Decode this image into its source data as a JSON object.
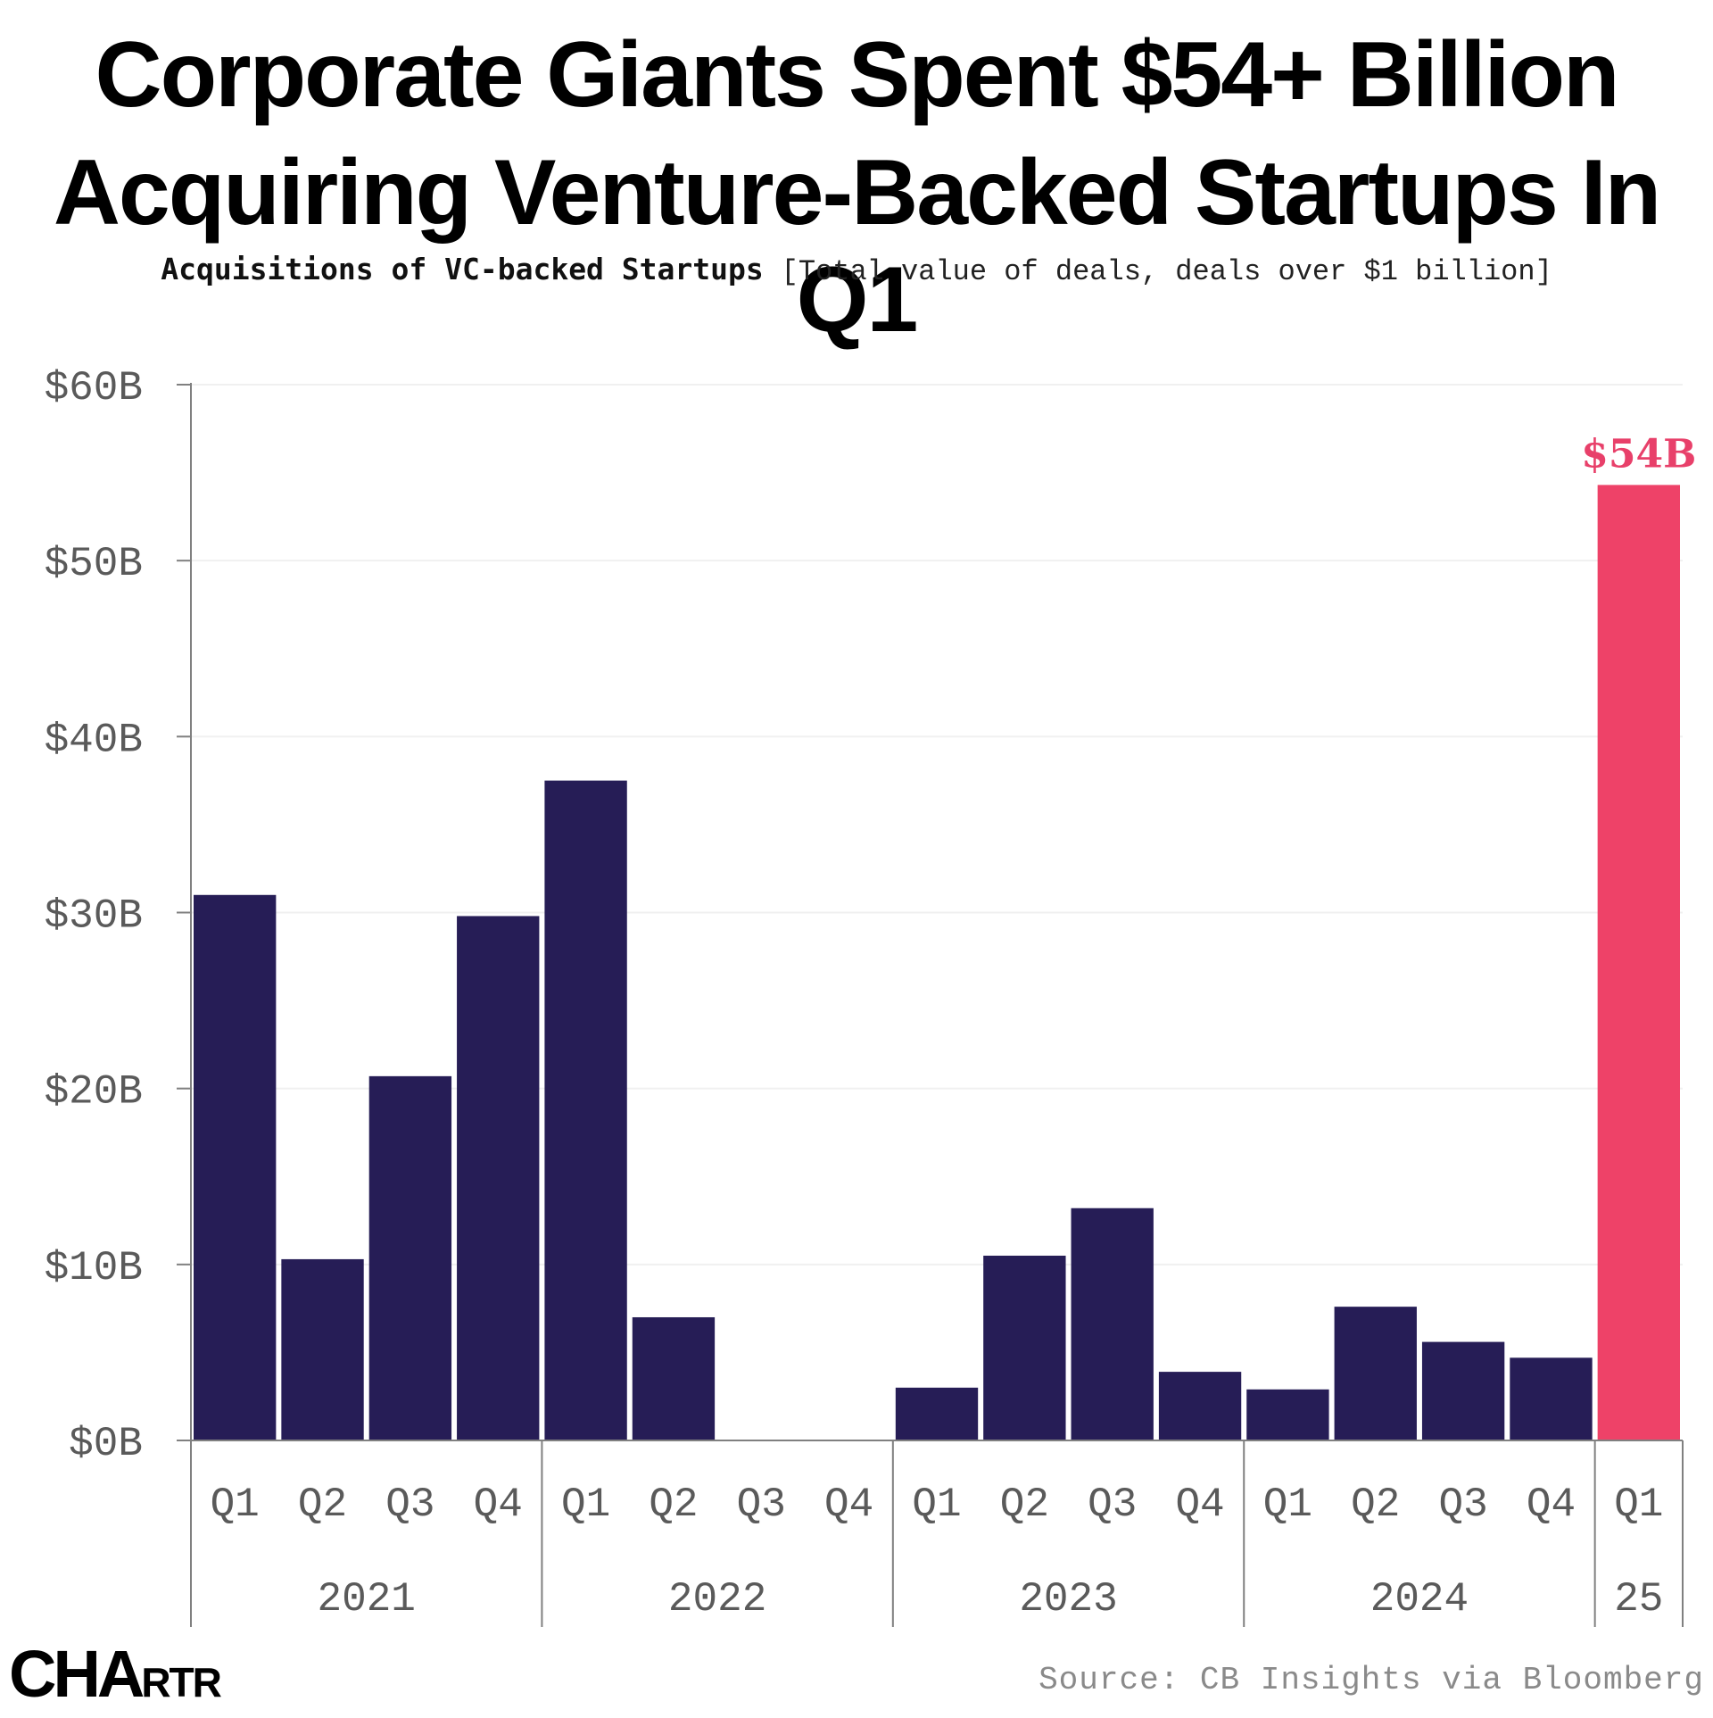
{
  "header": {
    "title_line1": "Corporate Giants Spent $54+ Billion",
    "title_line2": "Acquiring Venture-Backed Startups In Q1",
    "subtitle_bold": "Acquisitions of VC-backed Startups",
    "subtitle_note": "[Total value of deals, deals over $1 billion]"
  },
  "footer": {
    "logo_main": "CHA",
    "logo_small": "RTR",
    "source": "Source: CB Insights via Bloomberg"
  },
  "colors": {
    "bar": "#261d56",
    "highlight": "#ee4268",
    "axis": "#808080",
    "grid": "#f0f0f0"
  },
  "chart_data": {
    "type": "bar",
    "title": "Corporate Giants Spent $54+ Billion Acquiring Venture-Backed Startups In Q1",
    "subtitle": "Acquisitions of VC-backed Startups [Total value of deals, deals over $1 billion]",
    "categories": [
      "Q1",
      "Q2",
      "Q3",
      "Q4",
      "Q1",
      "Q2",
      "Q3",
      "Q4",
      "Q1",
      "Q2",
      "Q3",
      "Q4",
      "Q1",
      "Q2",
      "Q3",
      "Q4",
      "Q1"
    ],
    "groups": [
      {
        "label": "2021",
        "count": 4
      },
      {
        "label": "2022",
        "count": 4
      },
      {
        "label": "2023",
        "count": 4
      },
      {
        "label": "2024",
        "count": 4
      },
      {
        "label": "25",
        "count": 1
      }
    ],
    "values": [
      31,
      10.3,
      20.7,
      29.8,
      37.5,
      7,
      0,
      0,
      3,
      10.5,
      13.2,
      3.9,
      2.9,
      7.6,
      5.6,
      4.7,
      54.3
    ],
    "highlight_index": 16,
    "highlight_label": "$54B",
    "yticks": [
      "$0B",
      "$10B",
      "$20B",
      "$30B",
      "$40B",
      "$50B",
      "$60B"
    ],
    "ylim": [
      0,
      60
    ],
    "grid": true
  }
}
